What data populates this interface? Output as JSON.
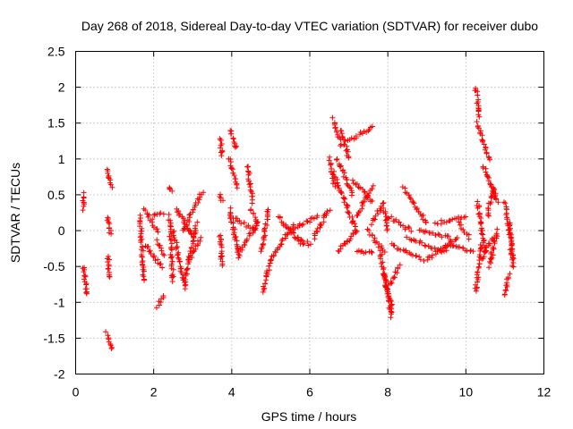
{
  "chart_data": {
    "type": "scatter",
    "title": "Day 268 of 2018, Sidereal Day-to-day VTEC variation (SDTVAR) for receiver dubo",
    "xlabel": "GPS time / hours",
    "ylabel": "SDTVAR / TECUs",
    "xlim": [
      0,
      12
    ],
    "ylim": [
      -2,
      2.5
    ],
    "xticks": [
      "0",
      "2",
      "4",
      "6",
      "8",
      "10",
      "12"
    ],
    "yticks": [
      "-2",
      "-1.5",
      "-1",
      "-0.5",
      "0",
      "0.5",
      "1",
      "1.5",
      "2",
      "2.5"
    ],
    "grid": true,
    "marker": "+",
    "color": "#ff0000",
    "series": [
      {
        "name": "SDTVAR",
        "segments": [
          [
            0.2,
            0.52,
            0.2,
            0.3
          ],
          [
            0.2,
            -0.5,
            0.28,
            -0.9
          ],
          [
            0.8,
            0.85,
            0.92,
            0.6
          ],
          [
            0.82,
            0.2,
            0.9,
            -0.05
          ],
          [
            0.82,
            -0.35,
            0.88,
            -0.65
          ],
          [
            0.8,
            -1.42,
            0.92,
            -1.65
          ],
          [
            1.65,
            0.2,
            1.75,
            -0.7
          ],
          [
            1.75,
            0.3,
            2.1,
            0.0
          ],
          [
            1.8,
            -0.2,
            2.2,
            -0.5
          ],
          [
            2.0,
            0.2,
            2.25,
            0.25
          ],
          [
            2.1,
            -0.15,
            2.25,
            -0.35
          ],
          [
            2.1,
            -1.05,
            2.25,
            -0.9
          ],
          [
            2.4,
            0.6,
            2.45,
            0.55
          ],
          [
            2.4,
            0.2,
            2.5,
            -0.7
          ],
          [
            2.5,
            0.0,
            2.8,
            -0.8
          ],
          [
            2.6,
            0.3,
            3.0,
            -0.1
          ],
          [
            2.8,
            -0.7,
            3.1,
            0.1
          ],
          [
            2.75,
            0.0,
            3.25,
            0.55
          ],
          [
            2.9,
            -0.4,
            3.2,
            -0.1
          ],
          [
            3.7,
            1.3,
            3.75,
            1.05
          ],
          [
            3.7,
            0.5,
            3.75,
            0.4
          ],
          [
            3.7,
            -0.05,
            3.75,
            -0.5
          ],
          [
            3.95,
            1.4,
            4.1,
            1.15
          ],
          [
            3.95,
            1.0,
            4.15,
            0.6
          ],
          [
            3.95,
            0.3,
            4.2,
            -0.4
          ],
          [
            4.0,
            0.2,
            4.6,
            0.0
          ],
          [
            4.2,
            -0.3,
            4.65,
            0.1
          ],
          [
            4.4,
            0.9,
            4.55,
            0.4
          ],
          [
            4.5,
            0.3,
            4.65,
            0.1
          ],
          [
            4.75,
            -0.3,
            4.95,
            0.3
          ],
          [
            4.8,
            -0.85,
            5.0,
            -0.4
          ],
          [
            5.0,
            -0.4,
            5.6,
            0.1
          ],
          [
            5.2,
            0.2,
            5.8,
            -0.2
          ],
          [
            5.5,
            0.0,
            6.2,
            0.2
          ],
          [
            5.7,
            -0.1,
            6.0,
            -0.2
          ],
          [
            6.1,
            -0.1,
            6.5,
            0.3
          ],
          [
            6.5,
            1.0,
            6.65,
            0.6
          ],
          [
            6.6,
            0.8,
            7.2,
            0.0
          ],
          [
            6.6,
            1.55,
            6.8,
            1.2
          ],
          [
            6.7,
            1.0,
            7.1,
            0.5
          ],
          [
            6.8,
            1.4,
            7.0,
            1.0
          ],
          [
            6.7,
            -0.3,
            7.2,
            0.0
          ],
          [
            7.1,
            0.7,
            7.6,
            0.4
          ],
          [
            7.0,
            1.25,
            7.6,
            1.45
          ],
          [
            7.2,
            0.2,
            7.6,
            0.6
          ],
          [
            7.2,
            -0.3,
            7.6,
            -0.3
          ],
          [
            7.6,
            0.1,
            7.9,
            0.4
          ],
          [
            7.5,
            0.0,
            7.9,
            -0.3
          ],
          [
            7.8,
            -0.3,
            8.1,
            -1.2
          ],
          [
            7.9,
            0.3,
            8.0,
            0.0
          ],
          [
            7.9,
            -0.6,
            8.1,
            -1.1
          ],
          [
            8.0,
            -0.8,
            8.3,
            -0.5
          ],
          [
            8.0,
            0.2,
            8.6,
            0.0
          ],
          [
            8.1,
            -0.2,
            8.9,
            -0.4
          ],
          [
            8.4,
            0.6,
            9.0,
            0.1
          ],
          [
            8.5,
            -0.1,
            9.5,
            -0.3
          ],
          [
            8.8,
            0.0,
            9.6,
            -0.1
          ],
          [
            9.0,
            -0.4,
            9.8,
            -0.1
          ],
          [
            9.2,
            0.1,
            10.0,
            0.2
          ],
          [
            9.5,
            -0.2,
            10.2,
            -0.3
          ],
          [
            9.8,
            0.1,
            10.1,
            -0.1
          ],
          [
            10.25,
            2.0,
            10.35,
            1.6
          ],
          [
            10.3,
            1.5,
            10.6,
            1.0
          ],
          [
            10.45,
            0.9,
            10.75,
            0.5
          ],
          [
            10.3,
            0.4,
            10.5,
            -0.3
          ],
          [
            10.25,
            -0.85,
            10.4,
            -0.2
          ],
          [
            10.4,
            -0.4,
            10.7,
            -0.1
          ],
          [
            10.55,
            0.2,
            10.7,
            0.6
          ],
          [
            10.7,
            0.6,
            10.8,
            0.4
          ],
          [
            10.6,
            -0.5,
            10.8,
            0.0
          ],
          [
            11.0,
            0.4,
            11.15,
            -0.1
          ],
          [
            11.0,
            -0.9,
            11.1,
            -0.6
          ],
          [
            11.1,
            0.1,
            11.2,
            -0.4
          ],
          [
            11.15,
            -0.2,
            11.2,
            -0.5
          ]
        ]
      }
    ]
  }
}
